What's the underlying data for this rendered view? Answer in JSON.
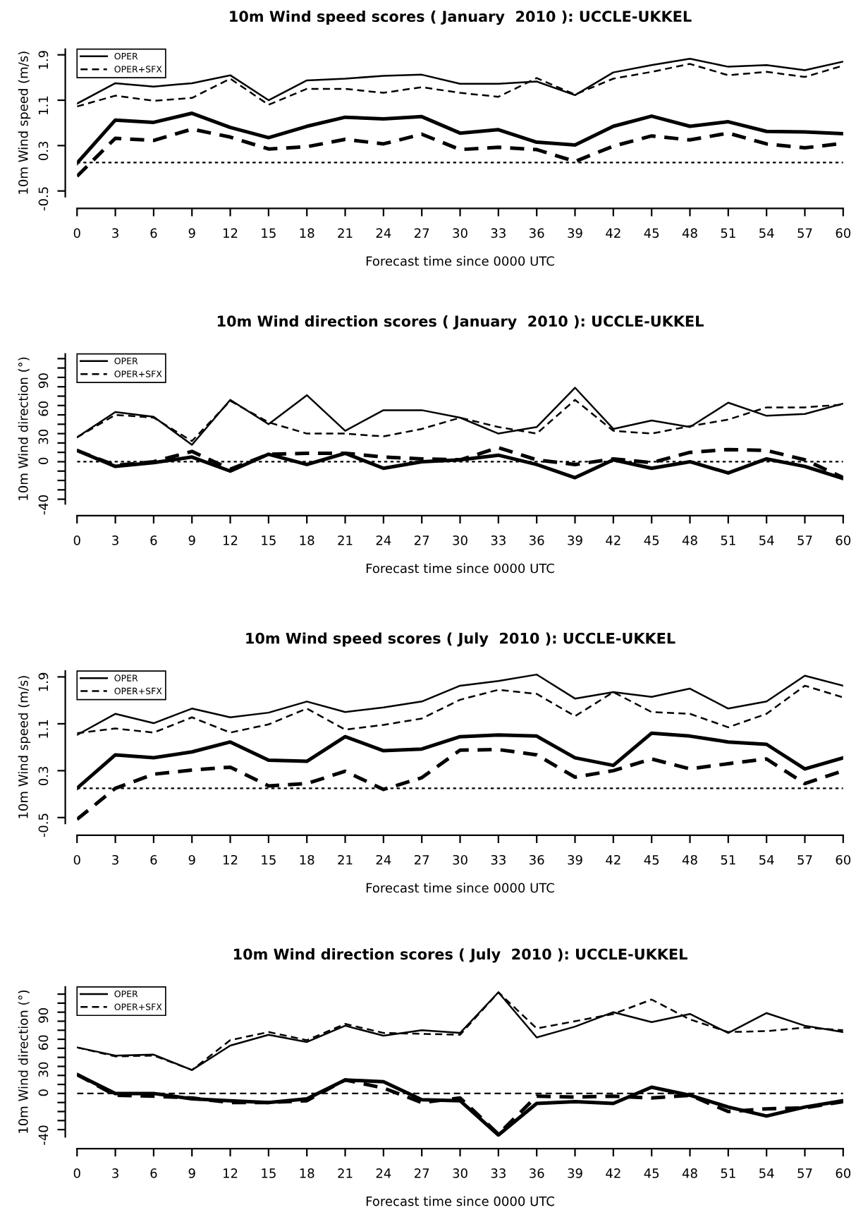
{
  "chart_data": [
    {
      "type": "line",
      "title": "10m Wind speed scores ( January  2010 ): UCCLE-UKKEL",
      "xlabel": "Forecast time since 0000 UTC",
      "ylabel": "10m Wind speed (m/s)",
      "x": [
        0,
        3,
        6,
        9,
        12,
        15,
        18,
        21,
        24,
        27,
        30,
        33,
        36,
        39,
        42,
        45,
        48,
        51,
        54,
        57,
        60
      ],
      "xlim": [
        0,
        60
      ],
      "xticks": [
        0,
        3,
        6,
        9,
        12,
        15,
        18,
        21,
        24,
        27,
        30,
        33,
        36,
        39,
        42,
        45,
        48,
        51,
        54,
        57,
        60
      ],
      "ylim": [
        -0.6,
        2.0
      ],
      "yticks": [
        -0.5,
        0.3,
        1.1,
        1.9
      ],
      "grid": false,
      "legend": "top left",
      "marker": "none",
      "ref_lines": [
        {
          "axis": "y",
          "value": 0,
          "line_style": "dotted",
          "color": "#000000"
        }
      ],
      "series": [
        {
          "name": "OPER",
          "color": "#000000",
          "line_style": "solid",
          "values": [
            1.04,
            1.4,
            1.34,
            1.4,
            1.54,
            1.1,
            1.45,
            1.48,
            1.53,
            1.55,
            1.39,
            1.39,
            1.43,
            1.19,
            1.59,
            1.72,
            1.83,
            1.69,
            1.72,
            1.63,
            1.78
          ]
        },
        {
          "name": "OPER+SFX",
          "color": "#000000",
          "line_style": "dashed",
          "values": [
            0.99,
            1.18,
            1.09,
            1.14,
            1.48,
            1.02,
            1.3,
            1.3,
            1.23,
            1.33,
            1.23,
            1.16,
            1.49,
            1.2,
            1.48,
            1.6,
            1.74,
            1.54,
            1.6,
            1.51,
            1.71
          ]
        },
        {
          "color": "#000000",
          "line_style": "solid",
          "values": [
            -0.01,
            0.75,
            0.71,
            0.87,
            0.62,
            0.44,
            0.64,
            0.8,
            0.77,
            0.81,
            0.52,
            0.58,
            0.36,
            0.31,
            0.64,
            0.82,
            0.64,
            0.72,
            0.55,
            0.54,
            0.51
          ]
        },
        {
          "color": "#000000",
          "line_style": "dashed",
          "values": [
            -0.24,
            0.43,
            0.39,
            0.59,
            0.45,
            0.24,
            0.28,
            0.41,
            0.33,
            0.5,
            0.23,
            0.27,
            0.23,
            0.02,
            0.29,
            0.47,
            0.4,
            0.52,
            0.33,
            0.26,
            0.34
          ]
        }
      ]
    },
    {
      "type": "line",
      "title": "10m Wind direction scores ( January  2010 ): UCCLE-UKKEL",
      "xlabel": "Forecast time since 0000 UTC",
      "ylabel": "10m Wind direction (°)",
      "x": [
        0,
        3,
        6,
        9,
        12,
        15,
        18,
        21,
        24,
        27,
        30,
        33,
        36,
        39,
        42,
        45,
        48,
        51,
        54,
        57,
        60
      ],
      "xlim": [
        0,
        60
      ],
      "xticks": [
        0,
        3,
        6,
        9,
        12,
        15,
        18,
        21,
        24,
        27,
        30,
        33,
        36,
        39,
        42,
        45,
        48,
        51,
        54,
        57,
        60
      ],
      "ylim": [
        -45,
        115
      ],
      "yticks": [
        -40,
        {
          "value": -30,
          "label": null
        },
        {
          "value": -20,
          "label": null
        },
        {
          "value": -10,
          "label": null
        },
        0,
        {
          "value": 10,
          "label": null
        },
        {
          "value": 20,
          "label": null
        },
        30,
        {
          "value": 40,
          "label": null
        },
        {
          "value": 50,
          "label": null
        },
        60,
        {
          "value": 70,
          "label": null
        },
        {
          "value": 80,
          "label": null
        },
        90,
        {
          "value": 100,
          "label": null
        },
        {
          "value": 110,
          "label": null
        }
      ],
      "grid": false,
      "legend": "top left",
      "marker": "none",
      "ref_lines": [
        {
          "axis": "y",
          "value": 0,
          "line_style": "dotted",
          "color": "#000000"
        }
      ],
      "series": [
        {
          "name": "OPER",
          "color": "#000000",
          "line_style": "solid",
          "values": [
            26,
            53,
            48,
            18,
            66,
            40,
            71,
            33,
            55,
            55,
            47,
            30,
            37,
            79,
            35,
            44,
            37,
            63,
            49,
            51,
            62
          ]
        },
        {
          "name": "OPER+SFX",
          "color": "#000000",
          "line_style": "dashed",
          "values": [
            26,
            50,
            47,
            22,
            65,
            42,
            30,
            30,
            27,
            35,
            47,
            37,
            30,
            66,
            33,
            30,
            38,
            45,
            58,
            58,
            61
          ]
        },
        {
          "color": "#000000",
          "line_style": "solid",
          "values": [
            12,
            -5,
            -1,
            5,
            -10,
            8,
            -3,
            9,
            -7,
            0,
            2,
            7,
            -3,
            -17,
            2,
            -7,
            0,
            -12,
            3,
            -5,
            -18
          ]
        },
        {
          "color": "#000000",
          "line_style": "dashed",
          "values": [
            12,
            -4,
            0,
            11,
            -8,
            8,
            9,
            9,
            5,
            3,
            2,
            15,
            2,
            -3,
            3,
            -1,
            10,
            13,
            12,
            2,
            -17
          ]
        }
      ]
    },
    {
      "type": "line",
      "title": "10m Wind speed scores ( July  2010 ): UCCLE-UKKEL",
      "xlabel": "Forecast time since 0000 UTC",
      "ylabel": "10m Wind speed (m/s)",
      "x": [
        0,
        3,
        6,
        9,
        12,
        15,
        18,
        21,
        24,
        27,
        30,
        33,
        36,
        39,
        42,
        45,
        48,
        51,
        54,
        57,
        60
      ],
      "xlim": [
        0,
        60
      ],
      "xticks": [
        0,
        3,
        6,
        9,
        12,
        15,
        18,
        21,
        24,
        27,
        30,
        33,
        36,
        39,
        42,
        45,
        48,
        51,
        54,
        57,
        60
      ],
      "ylim": [
        -0.6,
        2.0
      ],
      "yticks": [
        -0.5,
        0.3,
        1.1,
        1.9
      ],
      "grid": false,
      "legend": "top left",
      "marker": "none",
      "ref_lines": [
        {
          "axis": "y",
          "value": 0,
          "line_style": "dotted",
          "color": "#000000"
        }
      ],
      "series": [
        {
          "name": "OPER",
          "color": "#000000",
          "line_style": "solid",
          "values": [
            0.91,
            1.27,
            1.11,
            1.36,
            1.21,
            1.29,
            1.48,
            1.3,
            1.38,
            1.48,
            1.75,
            1.83,
            1.94,
            1.53,
            1.64,
            1.56,
            1.7,
            1.36,
            1.48,
            1.92,
            1.75
          ]
        },
        {
          "name": "OPER+SFX",
          "color": "#000000",
          "line_style": "dashed",
          "values": [
            0.94,
            1.02,
            0.95,
            1.21,
            0.95,
            1.09,
            1.36,
            1.0,
            1.08,
            1.19,
            1.51,
            1.68,
            1.61,
            1.23,
            1.64,
            1.3,
            1.27,
            1.04,
            1.27,
            1.75,
            1.55
          ]
        },
        {
          "color": "#000000",
          "line_style": "solid",
          "values": [
            0.0,
            0.57,
            0.52,
            0.62,
            0.79,
            0.48,
            0.46,
            0.88,
            0.64,
            0.67,
            0.88,
            0.91,
            0.89,
            0.52,
            0.39,
            0.94,
            0.89,
            0.79,
            0.75,
            0.33,
            0.52
          ]
        },
        {
          "color": "#000000",
          "line_style": "dashed",
          "values": [
            -0.53,
            0.0,
            0.24,
            0.31,
            0.36,
            0.04,
            0.08,
            0.29,
            -0.02,
            0.18,
            0.65,
            0.66,
            0.57,
            0.19,
            0.3,
            0.5,
            0.33,
            0.42,
            0.5,
            0.08,
            0.3
          ]
        }
      ]
    },
    {
      "type": "line",
      "title": "10m Wind direction scores ( July  2010 ): UCCLE-UKKEL",
      "xlabel": "Forecast time since 0000 UTC",
      "ylabel": "10m Wind direction (°)",
      "x": [
        0,
        3,
        6,
        9,
        12,
        15,
        18,
        21,
        24,
        27,
        30,
        33,
        36,
        39,
        42,
        45,
        48,
        51,
        54,
        57,
        60
      ],
      "xlim": [
        0,
        60
      ],
      "xticks": [
        0,
        3,
        6,
        9,
        12,
        15,
        18,
        21,
        24,
        27,
        30,
        33,
        36,
        39,
        42,
        45,
        48,
        51,
        54,
        57,
        60
      ],
      "ylim": [
        -48,
        118
      ],
      "yticks": [
        -40,
        {
          "value": -30,
          "label": null
        },
        {
          "value": -20,
          "label": null
        },
        {
          "value": -10,
          "label": null
        },
        0,
        {
          "value": 10,
          "label": null
        },
        {
          "value": 20,
          "label": null
        },
        30,
        {
          "value": 40,
          "label": null
        },
        {
          "value": 50,
          "label": null
        },
        60,
        {
          "value": 70,
          "label": null
        },
        {
          "value": 80,
          "label": null
        },
        90,
        {
          "value": 100,
          "label": null
        },
        {
          "value": 110,
          "label": null
        }
      ],
      "grid": false,
      "legend": "top left",
      "marker": "none",
      "ref_lines": [
        {
          "axis": "y",
          "value": 0,
          "line_style": "dashed",
          "color": "#000000"
        }
      ],
      "series": [
        {
          "name": "OPER",
          "color": "#000000",
          "line_style": "solid",
          "values": [
            51,
            42,
            43,
            26,
            53,
            65,
            57,
            75,
            64,
            70,
            67,
            112,
            62,
            74,
            90,
            79,
            88,
            67,
            89,
            75,
            68
          ]
        },
        {
          "name": "OPER+SFX",
          "color": "#000000",
          "line_style": "dashed",
          "values": [
            51,
            41,
            42,
            26,
            59,
            68,
            59,
            77,
            67,
            66,
            65,
            112,
            72,
            80,
            88,
            104,
            82,
            68,
            69,
            73,
            70
          ]
        },
        {
          "color": "#000000",
          "line_style": "solid",
          "values": [
            21,
            0,
            0,
            -6,
            -8,
            -10,
            -6,
            15,
            13,
            -7,
            -8,
            -46,
            -11,
            -9,
            -11,
            7,
            -2,
            -15,
            -25,
            -15,
            -8
          ]
        },
        {
          "color": "#000000",
          "line_style": "dashed",
          "values": [
            21,
            -2,
            -3,
            -5,
            -10,
            -10,
            -8,
            15,
            6,
            -10,
            -5,
            -45,
            -3,
            -4,
            -3,
            -5,
            -2,
            -20,
            -17,
            -16,
            -9
          ]
        }
      ]
    }
  ]
}
